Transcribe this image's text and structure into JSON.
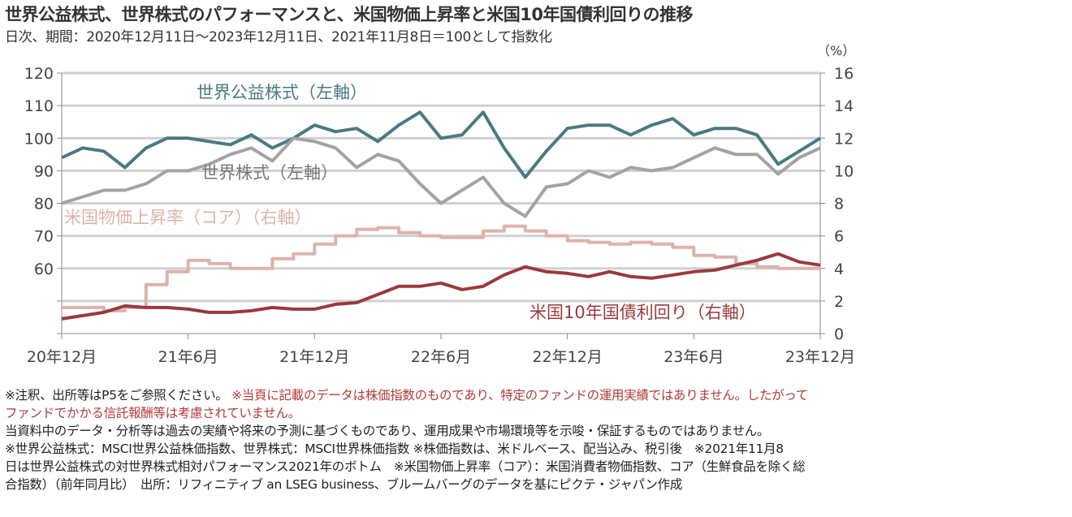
{
  "header": {
    "title": "世界公益株式、世界株式のパフォーマンスと、米国物価上昇率と米国10年国債利回りの推移",
    "subtitle": "日次、期間：2020年12月11日～2023年12月11日、2021年11月8日＝100として指数化",
    "right_unit": "（%）"
  },
  "chart_data": {
    "type": "line",
    "title": "世界公益株式、世界株式のパフォーマンスと、米国物価上昇率と米国10年国債利回りの推移",
    "x_tick_labels": [
      "20年12月",
      "21年6月",
      "21年12月",
      "22年6月",
      "22年12月",
      "23年6月",
      "23年12月"
    ],
    "x_months": [
      "2020-12",
      "2021-01",
      "2021-02",
      "2021-03",
      "2021-04",
      "2021-05",
      "2021-06",
      "2021-07",
      "2021-08",
      "2021-09",
      "2021-10",
      "2021-11",
      "2021-12",
      "2022-01",
      "2022-02",
      "2022-03",
      "2022-04",
      "2022-05",
      "2022-06",
      "2022-07",
      "2022-08",
      "2022-09",
      "2022-10",
      "2022-11",
      "2022-12",
      "2023-01",
      "2023-02",
      "2023-03",
      "2023-04",
      "2023-05",
      "2023-06",
      "2023-07",
      "2023-08",
      "2023-09",
      "2023-10",
      "2023-11",
      "2023-12"
    ],
    "y_left": {
      "label": "",
      "ylim": [
        40,
        120
      ],
      "tick_labels": [
        "120",
        "110",
        "100",
        "90",
        "80",
        "70",
        "60"
      ],
      "tick_values": [
        120,
        110,
        100,
        90,
        80,
        70,
        60
      ]
    },
    "y_right": {
      "label": "（%）",
      "ylim": [
        0,
        16
      ],
      "tick_labels": [
        "16",
        "14",
        "12",
        "10",
        "8",
        "6",
        "4",
        "2",
        "0"
      ],
      "tick_values": [
        16,
        14,
        12,
        10,
        8,
        6,
        4,
        2,
        0
      ]
    },
    "grid": true,
    "series": [
      {
        "name": "世界公益株式（左軸）",
        "axis": "left",
        "color": "#4a7a80",
        "values": [
          94,
          97,
          96,
          91,
          97,
          100,
          100,
          99,
          98,
          101,
          97,
          100,
          104,
          102,
          103,
          99,
          104,
          108,
          100,
          101,
          108,
          97,
          88,
          96,
          103,
          104,
          104,
          101,
          104,
          106,
          101,
          103,
          103,
          101,
          92,
          96,
          100
        ]
      },
      {
        "name": "世界株式（左軸）",
        "axis": "left",
        "color": "#a3a3a3",
        "values": [
          80,
          82,
          84,
          84,
          86,
          90,
          90,
          92,
          95,
          97,
          93,
          100,
          99,
          97,
          91,
          95,
          93,
          86,
          80,
          84,
          88,
          80,
          76,
          85,
          86,
          90,
          88,
          91,
          90,
          91,
          94,
          97,
          95,
          95,
          89,
          94,
          97
        ]
      },
      {
        "name": "米国物価上昇率（コア）（右軸）",
        "axis": "right",
        "color": "#dcb3ab",
        "step": true,
        "values": [
          1.6,
          1.6,
          1.4,
          1.6,
          3.0,
          3.8,
          4.5,
          4.3,
          4.0,
          4.0,
          4.6,
          4.9,
          5.5,
          6.0,
          6.4,
          6.5,
          6.2,
          6.0,
          5.9,
          5.9,
          6.3,
          6.6,
          6.3,
          6.0,
          5.7,
          5.6,
          5.5,
          5.6,
          5.5,
          5.3,
          4.8,
          4.7,
          4.3,
          4.1,
          4.0,
          4.0,
          4.0
        ]
      },
      {
        "name": "米国10年国債利回り（右軸）",
        "axis": "right",
        "color": "#9a3a3e",
        "values": [
          0.9,
          1.1,
          1.3,
          1.7,
          1.6,
          1.6,
          1.5,
          1.3,
          1.3,
          1.4,
          1.6,
          1.5,
          1.5,
          1.8,
          1.9,
          2.4,
          2.9,
          2.9,
          3.1,
          2.7,
          2.9,
          3.6,
          4.1,
          3.8,
          3.7,
          3.5,
          3.8,
          3.5,
          3.4,
          3.6,
          3.8,
          3.9,
          4.2,
          4.5,
          4.9,
          4.4,
          4.2
        ]
      }
    ],
    "annotations": [
      {
        "text": "世界公益株式（左軸）",
        "color": "#4a7a80"
      },
      {
        "text": "世界株式（左軸）",
        "color": "#777777"
      },
      {
        "text": "米国物価上昇率（コア）（右軸）",
        "color": "#dcb3ab"
      },
      {
        "text": "米国10年国債利回り（右軸）",
        "color": "#9a3a3e"
      }
    ]
  },
  "notes": {
    "line1_black": "※注釈、出所等はP5をご参照ください。",
    "line1_red": "※当頁に記載のデータは株価指数のものであり、特定のファンドの運用実績ではありません。したがって",
    "line2_red": "ファンドでかかる信託報酬等は考慮されていません。",
    "line3": " 当資料中のデータ・分析等は過去の実績や将来の予測に基づくものであり、運用成果や市場環境等を示唆・保証するものではありません。",
    "line4": "※世界公益株式：MSCI世界公益株価指数、世界株式：MSCI世界株価指数 ※株価指数は、米ドルベース、配当込み、税引後　※2021年11月8",
    "line5": "日は世界公益株式の対世界株式相対パフォーマンス2021年のボトム　※米国物価上昇率（コア）：米国消費者物価指数、コア（生鮮食品を除く総",
    "line6": "合指数）（前年同月比）　出所：リフィニティブ an LSEG business、ブルームバーグのデータを基にピクテ・ジャパン作成"
  },
  "colors": {
    "grid": "#d0d0d0",
    "axis": "#888888",
    "note_red": "#b03a3a"
  }
}
